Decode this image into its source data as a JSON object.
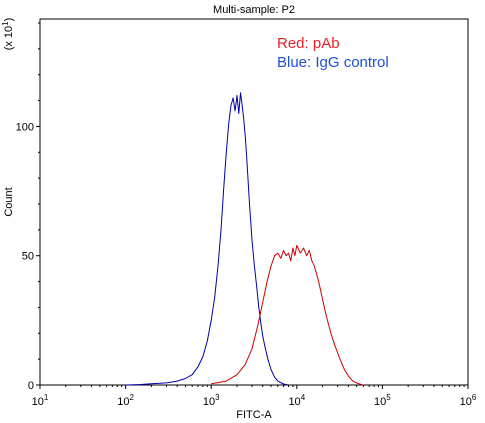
{
  "chart_data": {
    "type": "line",
    "title": "Multi-sample: P2",
    "xlabel": "FITC-A",
    "ylabel": "Count",
    "y_multiplier_label": "(x 10",
    "y_multiplier_exp": "1",
    "y_multiplier_close": ")",
    "x_scale": "log",
    "xlim": [
      10,
      1000000
    ],
    "ylim": [
      0,
      1400
    ],
    "grid": false,
    "x_ticks": [
      {
        "base": "10",
        "exp": "1",
        "value": 10
      },
      {
        "base": "10",
        "exp": "2",
        "value": 100
      },
      {
        "base": "10",
        "exp": "3",
        "value": 1000
      },
      {
        "base": "10",
        "exp": "4",
        "value": 10000
      },
      {
        "base": "10",
        "exp": "5",
        "value": 100000
      },
      {
        "base": "10",
        "exp": "6",
        "value": 1000000
      }
    ],
    "y_ticks": [
      {
        "label": "0",
        "value": 0
      },
      {
        "label": "50",
        "value": 500
      },
      {
        "label": "100",
        "value": 1000
      }
    ],
    "annotations": [
      {
        "text": "Red: pAb",
        "color": "#e8202a"
      },
      {
        "text": "Blue: IgG control",
        "color": "#1f4fd8"
      }
    ],
    "series": [
      {
        "color": "#0000aa",
        "x": [
          100,
          150,
          200,
          300,
          400,
          500,
          600,
          700,
          800,
          900,
          1000,
          1100,
          1200,
          1300,
          1400,
          1500,
          1600,
          1700,
          1800,
          1900,
          2000,
          2100,
          2200,
          2300,
          2400,
          2500,
          2600,
          2700,
          2800,
          3000,
          3200,
          3400,
          3600,
          3800,
          4000,
          4300,
          4600,
          5000,
          5500,
          6000,
          7000,
          8000
        ],
        "y": [
          0,
          2,
          5,
          8,
          15,
          25,
          40,
          70,
          110,
          170,
          250,
          340,
          460,
          600,
          760,
          900,
          1010,
          1080,
          1110,
          1060,
          1120,
          1050,
          1130,
          1080,
          1030,
          960,
          880,
          790,
          700,
          560,
          460,
          380,
          300,
          240,
          190,
          140,
          100,
          60,
          30,
          15,
          4,
          0
        ]
      },
      {
        "color": "#cc0000",
        "x": [
          1000,
          1500,
          2000,
          2500,
          3000,
          3500,
          4000,
          4500,
          5000,
          5500,
          6000,
          6500,
          7000,
          7500,
          8000,
          8500,
          9000,
          9500,
          10000,
          11000,
          12000,
          13000,
          14000,
          15000,
          16000,
          18000,
          20000,
          22000,
          25000,
          28000,
          32000,
          36000,
          40000,
          45000,
          50000,
          55000,
          60000
        ],
        "y": [
          5,
          15,
          40,
          80,
          140,
          230,
          320,
          400,
          460,
          500,
          510,
          490,
          520,
          500,
          510,
          480,
          530,
          500,
          540,
          510,
          530,
          500,
          520,
          480,
          460,
          400,
          330,
          270,
          200,
          150,
          100,
          60,
          35,
          15,
          8,
          3,
          0
        ]
      }
    ]
  }
}
